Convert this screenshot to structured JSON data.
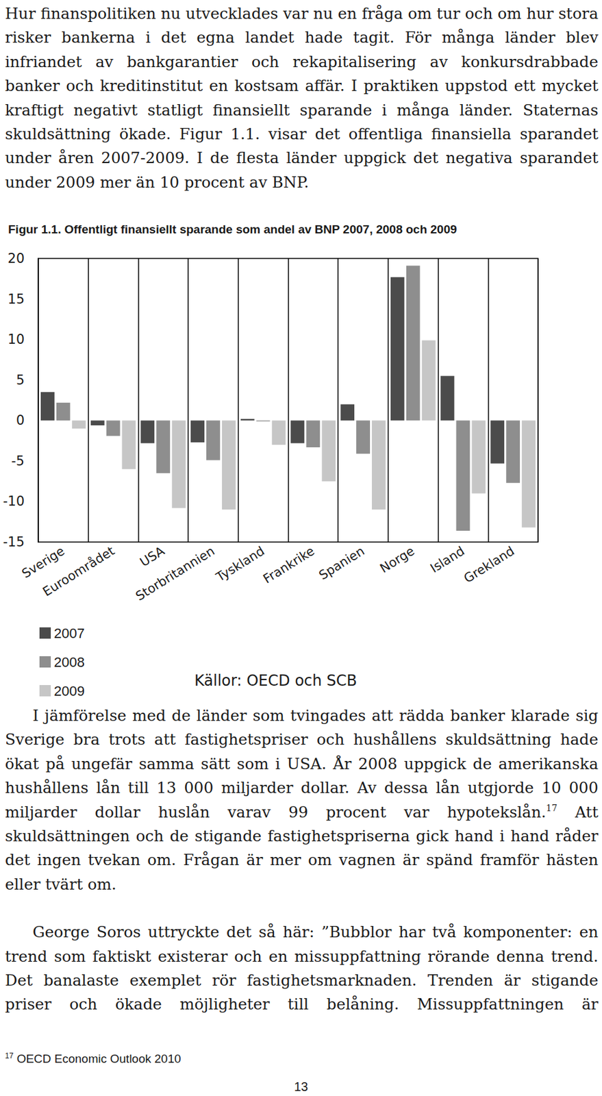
{
  "text_before": [
    {
      "parts": [
        {
          "text": "Hur finanspolitiken nu utvecklades var nu en fråga om tur och om hur stora risker bankerna i det egna landet hade tagit. För många länder blev infriandet av bankgarantier och rekapitalisering av konkursdrabbade banker och kreditinstitut en kostsam affär. I praktiken uppstod ett mycket kraftigt negativt statligt finansiellt sparande i många länder. Staternas skuldsättning ökade. Figur 1.1. visar det offentliga finansiella sparandet under åren 2007-2009. I de flesta länder uppgick det negativa sparandet under 2009 mer än 10 procent av BNP."
        }
      ]
    }
  ],
  "chart_data": {
    "type": "bar",
    "title": "Figur 1.1. Offentligt finansiellt sparande som andel av BNP 2007, 2008 och 2009",
    "source": "Källor: OECD och SCB",
    "categories": [
      "Sverige",
      "Euroområdet",
      "USA",
      "Storbritannien",
      "Tyskland",
      "Frankrike",
      "Spanien",
      "Norge",
      "Island",
      "Grekland"
    ],
    "series": [
      {
        "name": "2007",
        "color": "#4b4b4b",
        "values": [
          3.5,
          -0.6,
          -2.8,
          -2.7,
          0.2,
          -2.8,
          2.0,
          17.7,
          5.5,
          -5.3
        ]
      },
      {
        "name": "2008",
        "color": "#8e8e8e",
        "values": [
          2.2,
          -1.9,
          -6.5,
          -4.9,
          -0.1,
          -3.3,
          -4.1,
          19.1,
          -13.6,
          -7.7
        ]
      },
      {
        "name": "2009",
        "color": "#c6c6c6",
        "values": [
          -1.0,
          -6.0,
          -10.8,
          -11.0,
          -3.0,
          -7.5,
          -11.0,
          9.9,
          -9.0,
          -13.2
        ]
      }
    ],
    "ylim": [
      -15,
      20
    ],
    "yticks": [
      -15,
      -10,
      -5,
      0,
      5,
      10,
      15,
      20
    ],
    "grid": true,
    "legend": "bottom-left"
  },
  "text_after": [
    {
      "parts": [
        {
          "text": "I jämförelse med de länder som tvingades att rädda banker klarade sig Sverige bra trots att fastighetspriser och hushållens skuldsättning hade ökat på ungefär samma sätt som i USA. År 2008 uppgick de amerikanska hushållens lån till 13 000 miljarder dollar. Av dessa lån utgjorde 10 000 miljarder dollar huslån varav 99 procent var hypotekslån."
        },
        {
          "sup": "17"
        },
        {
          "text": " Att skuldsättningen och de stigande fastighetspriserna gick hand i hand råder det ingen tvekan om. Frågan är mer om vagnen är spänd framför hästen eller tvärt om."
        }
      ]
    },
    {
      "parts": [
        {
          "text": "George Soros uttryckte det så här: ”Bubblor har två komponenter: en trend som faktiskt existerar och en missuppfattning rörande denna trend. Det banalaste exemplet rör fastighetsmarknaden. Trenden är stigande priser och ökade möjligheter till belåning. Missuppfattningen är"
        }
      ]
    }
  ],
  "footnote": {
    "mark": "17",
    "text": "OECD Economic Outlook 2010"
  },
  "page_number": "13"
}
